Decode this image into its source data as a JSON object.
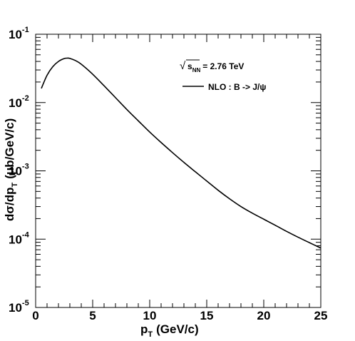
{
  "chart_data": {
    "type": "line",
    "xlabel": "p",
    "xlabel_sub": "T",
    "xlabel_unit": "(GeV/c)",
    "ylabel": "dσ/dp",
    "ylabel_sub": "T",
    "ylabel_unit": "(μb/GeV/c)",
    "xlim": [
      0,
      25
    ],
    "ylim": [
      1e-05,
      0.1
    ],
    "yscale": "log",
    "grid": false,
    "x_ticks": [
      0,
      5,
      10,
      15,
      20,
      25
    ],
    "x_tick_labels": [
      "0",
      "5",
      "10",
      "15",
      "20",
      "25"
    ],
    "y_ticks": [
      1e-05,
      0.0001,
      0.001,
      0.01,
      0.1
    ],
    "y_tick_exponents": [
      "-5",
      "-4",
      "-3",
      "-2",
      "-1"
    ],
    "y_tick_base": "10",
    "annotation": {
      "symbol": "√",
      "var": "s",
      "sub": "NN",
      "value": "= 2.76 TeV"
    },
    "legend_position": "top-right",
    "series": [
      {
        "name": "NLO : B -> J/ψ",
        "color": "#000000",
        "x": [
          0.5,
          1.0,
          1.5,
          2.0,
          2.5,
          2.8,
          3.0,
          3.5,
          4.0,
          5.0,
          6.0,
          7.0,
          8.0,
          9.0,
          10.0,
          11.0,
          12.0,
          13.0,
          14.0,
          15.0,
          16.0,
          17.0,
          18.0,
          19.0,
          20.0,
          21.0,
          22.0,
          23.0,
          24.0,
          25.0
        ],
        "y": [
          0.0161,
          0.0251,
          0.0335,
          0.04,
          0.044,
          0.0447,
          0.0443,
          0.0411,
          0.0364,
          0.026,
          0.0176,
          0.0118,
          0.0079,
          0.0054,
          0.0037,
          0.0026,
          0.00185,
          0.00133,
          0.00097,
          0.00071,
          0.00052,
          0.00039,
          0.0003,
          0.00024,
          0.000196,
          0.00016,
          0.00013,
          0.000107,
          8.9e-05,
          7.4e-05
        ]
      }
    ]
  }
}
